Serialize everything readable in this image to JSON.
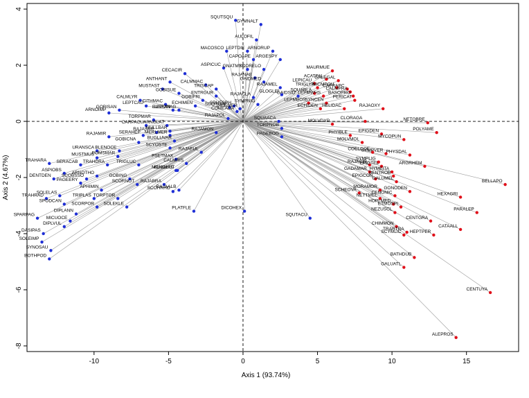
{
  "chart_data": {
    "type": "scatter",
    "xlabel": "Axis 1 (93.74%)",
    "ylabel": "Axis 2 (4.67%)",
    "xlim": [
      -14.5,
      18.5
    ],
    "ylim": [
      -8.2,
      4.2
    ],
    "xticks": [
      -10,
      -5,
      0,
      5,
      10,
      15
    ],
    "yticks": [
      -8,
      -6,
      -4,
      -2,
      0,
      2,
      4
    ],
    "origin_lines": "dashed",
    "grid": false,
    "colors": {
      "group_blue": "#1f2fd6",
      "group_red": "#e0101a",
      "spoke": "#9a9a9a"
    },
    "series": [
      {
        "color_key": "group_blue",
        "points": [
          {
            "label": "SQUTSQU",
            "x": -0.5,
            "y": 3.6
          },
          {
            "label": "GYMNALT",
            "x": 1.2,
            "y": 3.45
          },
          {
            "label": "AULOFIL",
            "x": 0.9,
            "y": 2.9
          },
          {
            "label": "MACOSCO",
            "x": -1.1,
            "y": 2.5
          },
          {
            "label": "LEPTDIE",
            "x": 0.3,
            "y": 2.5
          },
          {
            "label": "ARNORUP",
            "x": 2.0,
            "y": 2.5
          },
          {
            "label": "CAPOAPE",
            "x": 0.7,
            "y": 2.2
          },
          {
            "label": "ARGESPY",
            "x": 2.5,
            "y": 2.2
          },
          {
            "label": "ASPICUC",
            "x": -1.3,
            "y": 1.9
          },
          {
            "label": "GNATMYS",
            "x": 0.3,
            "y": 1.85
          },
          {
            "label": "SCORELO",
            "x": 1.4,
            "y": 1.85
          },
          {
            "label": "CECACIR",
            "x": -3.9,
            "y": 1.7
          },
          {
            "label": "RAJANAE",
            "x": 0.8,
            "y": 1.55
          },
          {
            "label": "GAIDMED",
            "x": 1.4,
            "y": 1.4
          },
          {
            "label": "ANTHANT",
            "x": -4.9,
            "y": 1.4
          },
          {
            "label": "CALMMAC",
            "x": -2.5,
            "y": 1.3
          },
          {
            "label": "TRISCAP",
            "x": -1.8,
            "y": 1.15
          },
          {
            "label": "RAJAMEL",
            "x": 2.5,
            "y": 1.2
          },
          {
            "label": "MUSTAST",
            "x": -5.4,
            "y": 1.15
          },
          {
            "label": "GOBISUE",
            "x": -4.3,
            "y": 1.0
          },
          {
            "label": "ENTRGUR",
            "x": -1.8,
            "y": 0.9
          },
          {
            "label": "RAJACLA",
            "x": 0.7,
            "y": 0.85
          },
          {
            "label": "GLOGLEI",
            "x": 2.6,
            "y": 0.95
          },
          {
            "label": "GAIDSID",
            "x": 3.7,
            "y": 0.9
          },
          {
            "label": "GOBIFRI",
            "x": -2.7,
            "y": 0.75
          },
          {
            "label": "CALMLYR",
            "x": -6.9,
            "y": 0.75
          },
          {
            "label": "CITHMAC",
            "x": -5.2,
            "y": 0.6
          },
          {
            "label": "LEPTCAU",
            "x": -6.5,
            "y": 0.55
          },
          {
            "label": "ECHIMEN",
            "x": -3.2,
            "y": 0.55
          },
          {
            "label": "SPHESPH",
            "x": -0.6,
            "y": 0.55
          },
          {
            "label": "SYMPNIG",
            "x": 1.0,
            "y": 0.6
          },
          {
            "label": "DICEMER",
            "x": -0.2,
            "y": 0.45
          },
          {
            "label": "COMEAGA",
            "x": -0.4,
            "y": 0.35
          },
          {
            "label": "SCORLOE",
            "x": -0.9,
            "y": 0.5
          },
          {
            "label": "EUSFAN",
            "x": -4.7,
            "y": 0.4
          },
          {
            "label": "LEPOMAG",
            "x": -4.3,
            "y": 0.4
          },
          {
            "label": "GOBISAN",
            "x": -8.3,
            "y": 0.4
          },
          {
            "label": "ARNOIMP",
            "x": -9.0,
            "y": 0.3
          },
          {
            "label": "TORPMAR",
            "x": -6.0,
            "y": 0.05
          },
          {
            "label": "RAJAPOL",
            "x": -1.0,
            "y": 0.1
          },
          {
            "label": "ARNOLAT",
            "x": -5.1,
            "y": -0.15
          },
          {
            "label": "SQUAACA",
            "x": 2.4,
            "y": 0.0
          },
          {
            "label": "CARPACU",
            "x": -6.5,
            "y": -0.15
          },
          {
            "label": "MULLBAR",
            "x": -4.9,
            "y": -0.35
          },
          {
            "label": "TORPNOB",
            "x": 2.6,
            "y": -0.25
          },
          {
            "label": "PAGEBOG",
            "x": 2.6,
            "y": -0.55
          },
          {
            "label": "RAJAMON",
            "x": -1.8,
            "y": -0.4
          },
          {
            "label": "SERAHEP",
            "x": -6.7,
            "y": -0.5
          },
          {
            "label": "RAJASAR",
            "x": -5.8,
            "y": -0.4
          },
          {
            "label": "MERLMER",
            "x": -4.9,
            "y": -0.5
          },
          {
            "label": "RAJAMIR",
            "x": -9.0,
            "y": -0.55
          },
          {
            "label": "GOBICNA",
            "x": -7.0,
            "y": -0.75
          },
          {
            "label": "BUGLUVAR",
            "x": -4.6,
            "y": -0.7
          },
          {
            "label": "SCYOSTE",
            "x": -4.9,
            "y": -0.95
          },
          {
            "label": "URANSCA",
            "x": -9.8,
            "y": -1.05
          },
          {
            "label": "BLENOCE",
            "x": -8.3,
            "y": -1.05
          },
          {
            "label": "RAJAFUL",
            "x": -2.8,
            "y": -1.1
          },
          {
            "label": "MUSTMUS",
            "x": -9.8,
            "y": -1.3
          },
          {
            "label": "POMSMAR",
            "x": -8.4,
            "y": -1.25
          },
          {
            "label": "PSETMAX",
            "x": -4.5,
            "y": -1.35
          },
          {
            "label": "CALMRIS",
            "x": -3.8,
            "y": -1.5
          },
          {
            "label": "TRAHARA",
            "x": -13.0,
            "y": -1.5
          },
          {
            "label": "SERACAB",
            "x": -10.9,
            "y": -1.55
          },
          {
            "label": "TRAHDRA",
            "x": -9.1,
            "y": -1.55
          },
          {
            "label": "TRIGLUC",
            "x": -7.0,
            "y": -1.55
          },
          {
            "label": "MONOHIS",
            "x": -4.5,
            "y": -1.75
          },
          {
            "label": "BUGLLUT",
            "x": -4.4,
            "y": -1.75
          },
          {
            "label": "ASPIOBS",
            "x": -12.0,
            "y": -1.85
          },
          {
            "label": "ARNOTHO",
            "x": -9.8,
            "y": -1.95
          },
          {
            "label": "GOBING",
            "x": -7.6,
            "y": -2.05
          },
          {
            "label": "DENTDEN",
            "x": -12.7,
            "y": -2.05
          },
          {
            "label": "SCOBSSO",
            "x": -10.5,
            "y": -2.05
          },
          {
            "label": "PAGEERY",
            "x": -10.9,
            "y": -2.2
          },
          {
            "label": "SCORNOT",
            "x": -7.1,
            "y": -2.25
          },
          {
            "label": "RAJABRA",
            "x": -5.3,
            "y": -2.25
          },
          {
            "label": "APHIMIN",
            "x": -9.5,
            "y": -2.45
          },
          {
            "label": "SCOHRHO",
            "x": -4.7,
            "y": -2.5
          },
          {
            "label": "RAJAALB",
            "x": -4.3,
            "y": -2.45
          },
          {
            "label": "SOLELAS",
            "x": -12.3,
            "y": -2.65
          },
          {
            "label": "TRIPLAS",
            "x": -10.0,
            "y": -2.75
          },
          {
            "label": "TORPTOR",
            "x": -8.4,
            "y": -2.75
          },
          {
            "label": "TRAHRAD",
            "x": -13.2,
            "y": -2.75
          },
          {
            "label": "SPODCAN",
            "x": -12.0,
            "y": -2.95
          },
          {
            "label": "SCORPOR",
            "x": -9.8,
            "y": -3.05
          },
          {
            "label": "SOLEKLE",
            "x": -7.8,
            "y": -3.05
          },
          {
            "label": "PLATFLE",
            "x": -3.3,
            "y": -3.2
          },
          {
            "label": "DIPLANN",
            "x": -11.2,
            "y": -3.3
          },
          {
            "label": "SPARPAG",
            "x": -13.8,
            "y": -3.45
          },
          {
            "label": "MICUOCE",
            "x": -11.6,
            "y": -3.55
          },
          {
            "label": "DIPLVUL",
            "x": -12.0,
            "y": -3.75
          },
          {
            "label": "DICOHEX",
            "x": 0.1,
            "y": -3.2
          },
          {
            "label": "SQUTACU",
            "x": 4.5,
            "y": -3.45
          },
          {
            "label": "DASIPAS",
            "x": -13.4,
            "y": -4.0
          },
          {
            "label": "SOLEIMP",
            "x": -13.5,
            "y": -4.3
          },
          {
            "label": "SYNOSAU",
            "x": -12.9,
            "y": -4.6
          },
          {
            "label": "BOTHPOD",
            "x": -13.0,
            "y": -4.9
          }
        ]
      },
      {
        "color_key": "group_red",
        "points": [
          {
            "label": "MAURMUE",
            "x": 6.0,
            "y": 1.8
          },
          {
            "label": "ACATPAL",
            "x": 5.6,
            "y": 1.5
          },
          {
            "label": "GALEGAL",
            "x": 6.4,
            "y": 1.45
          },
          {
            "label": "LEPICAU",
            "x": 4.8,
            "y": 1.35
          },
          {
            "label": "TRIGLYR",
            "x": 5.0,
            "y": 1.2
          },
          {
            "label": "MICMPOU",
            "x": 6.3,
            "y": 1.2
          },
          {
            "label": "CAPRAPC",
            "x": 7.0,
            "y": 1.15
          },
          {
            "label": "CALMPRA",
            "x": 7.2,
            "y": 1.05
          },
          {
            "label": "SQUABLA",
            "x": 4.8,
            "y": 1.0
          },
          {
            "label": "LEPMWHS",
            "x": 5.4,
            "y": 0.9
          },
          {
            "label": "BASOPRO",
            "x": 7.4,
            "y": 0.9
          },
          {
            "label": "PERICAT",
            "x": 7.5,
            "y": 0.75
          },
          {
            "label": "LEPMBOS",
            "x": 4.4,
            "y": 0.65
          },
          {
            "label": "SYNCEN",
            "x": 5.6,
            "y": 0.65
          },
          {
            "label": "ECHIDEN",
            "x": 5.2,
            "y": 0.45
          },
          {
            "label": "HELIDAC",
            "x": 6.8,
            "y": 0.45
          },
          {
            "label": "RAJAOXY",
            "x": 9.4,
            "y": 0.45
          },
          {
            "label": "CLORAGA",
            "x": 8.2,
            "y": 0.0
          },
          {
            "label": "NETOBRE",
            "x": 12.4,
            "y": -0.05
          },
          {
            "label": "MOLVDYP",
            "x": 6.0,
            "y": -0.1
          },
          {
            "label": "POLYAME",
            "x": 13.0,
            "y": -0.4
          },
          {
            "label": "EPIGDEN",
            "x": 9.3,
            "y": -0.45
          },
          {
            "label": "PHYIBLE",
            "x": 7.2,
            "y": -0.5
          },
          {
            "label": "MYCOPUN",
            "x": 10.8,
            "y": -0.65
          },
          {
            "label": "MOLVMOL",
            "x": 8.0,
            "y": -0.75
          },
          {
            "label": "COELCOE",
            "x": 8.7,
            "y": -1.1
          },
          {
            "label": "SYMPVER",
            "x": 9.6,
            "y": -1.15
          },
          {
            "label": "PHYSDAL",
            "x": 11.2,
            "y": -1.2
          },
          {
            "label": "SYMPLIG",
            "x": 9.1,
            "y": -1.45
          },
          {
            "label": "RAJACIR",
            "x": 8.5,
            "y": -1.55
          },
          {
            "label": "EPIGTEL",
            "x": 9.3,
            "y": -1.6
          },
          {
            "label": "ARGRHEM",
            "x": 12.2,
            "y": -1.6
          },
          {
            "label": "GADAMAR",
            "x": 8.5,
            "y": -1.8
          },
          {
            "label": "HYMEITA",
            "x": 10.0,
            "y": -1.8
          },
          {
            "label": "BENTROB",
            "x": 10.1,
            "y": -1.95
          },
          {
            "label": "EPIGCON",
            "x": 8.9,
            "y": -2.05
          },
          {
            "label": "GALUMEL",
            "x": 10.3,
            "y": -2.15
          },
          {
            "label": "BELLAPO",
            "x": 17.6,
            "y": -2.25
          },
          {
            "label": "SCHEOVA",
            "x": 7.8,
            "y": -2.55
          },
          {
            "label": "MORAMOR",
            "x": 9.2,
            "y": -2.45
          },
          {
            "label": "GONODEN",
            "x": 11.2,
            "y": -2.5
          },
          {
            "label": "CENONIC",
            "x": 10.2,
            "y": -2.65
          },
          {
            "label": "NETTMEL",
            "x": 9.2,
            "y": -2.75
          },
          {
            "label": "HOPLMED",
            "x": 10.1,
            "y": -2.95
          },
          {
            "label": "HEXAGRI",
            "x": 14.6,
            "y": -2.7
          },
          {
            "label": "ETMOSPI",
            "x": 10.6,
            "y": -3.05
          },
          {
            "label": "NEZUSCL",
            "x": 10.2,
            "y": -3.25
          },
          {
            "label": "PARALEP",
            "x": 15.7,
            "y": -3.25
          },
          {
            "label": "CENTGRA",
            "x": 12.6,
            "y": -3.55
          },
          {
            "label": "CHIMMON",
            "x": 10.3,
            "y": -3.75
          },
          {
            "label": "CATAALL",
            "x": 14.6,
            "y": -3.85
          },
          {
            "label": "TRARTRA",
            "x": 11.0,
            "y": -3.95
          },
          {
            "label": "SCYMLIC",
            "x": 10.8,
            "y": -4.05
          },
          {
            "label": "HEPTPER",
            "x": 12.8,
            "y": -4.05
          },
          {
            "label": "BATHDUB",
            "x": 11.5,
            "y": -4.85
          },
          {
            "label": "GALUATL",
            "x": 10.8,
            "y": -5.2
          },
          {
            "label": "CENTUYA",
            "x": 16.6,
            "y": -6.1
          },
          {
            "label": "ALEPROS",
            "x": 14.3,
            "y": -7.7
          }
        ]
      }
    ]
  }
}
